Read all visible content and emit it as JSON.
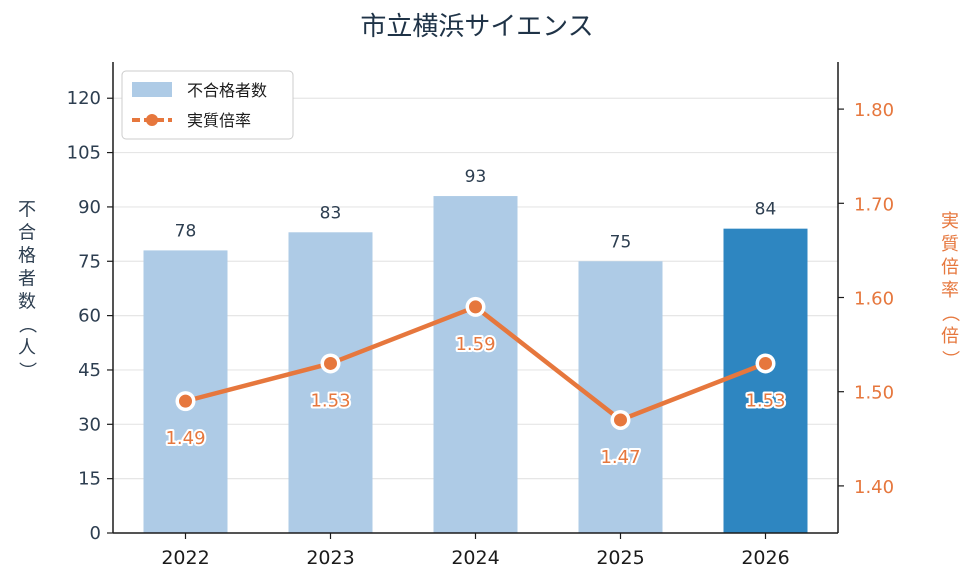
{
  "chart_data": {
    "type": "bar",
    "title": "市立横浜サイエンス",
    "categories": [
      "2022",
      "2023",
      "2024",
      "2025",
      "2026"
    ],
    "series": [
      {
        "name": "不合格者数",
        "type": "bar",
        "axis": "left",
        "values": [
          78,
          83,
          93,
          75,
          84
        ],
        "color": "#aecbe6",
        "highlight_color": "#2e86c1",
        "highlight_index": 4
      },
      {
        "name": "実質倍率",
        "type": "line",
        "axis": "right",
        "values": [
          1.49,
          1.53,
          1.59,
          1.47,
          1.53
        ],
        "labels": [
          "1.49",
          "1.53",
          "1.59",
          "1.47",
          "1.53"
        ],
        "color": "#e6773d"
      }
    ],
    "ylabel": "不合格者数（人）",
    "ylabel_right": "実質倍率（倍）",
    "ylim": [
      0,
      130
    ],
    "ylim_right": [
      1.35,
      1.85
    ],
    "yticks": [
      "0",
      "15",
      "30",
      "45",
      "60",
      "75",
      "90",
      "105",
      "120"
    ],
    "yticks_right": [
      "1.40",
      "1.50",
      "1.60",
      "1.70",
      "1.80"
    ],
    "grid": true,
    "legend": "top-left"
  }
}
